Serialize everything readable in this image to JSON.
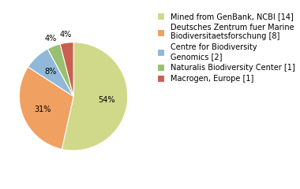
{
  "chart_data": {
    "type": "pie",
    "categories": [
      "Mined from GenBank, NCBI [14]",
      "Deutsches Zentrum fuer Marine\nBiodiversitaetsforschung [8]",
      "Centre for Biodiversity\nGenomics [2]",
      "Naturalis Biodiversity Center [1]",
      "Macrogen, Europe [1]"
    ],
    "values": [
      54,
      31,
      8,
      4,
      4
    ],
    "value_labels": [
      "54%",
      "31%",
      "8%",
      "4%",
      "4%"
    ],
    "colors": [
      "#d0d98a",
      "#f0a060",
      "#90b8d8",
      "#98c070",
      "#c86050"
    ],
    "data_labels": true,
    "legend": "upper left"
  }
}
